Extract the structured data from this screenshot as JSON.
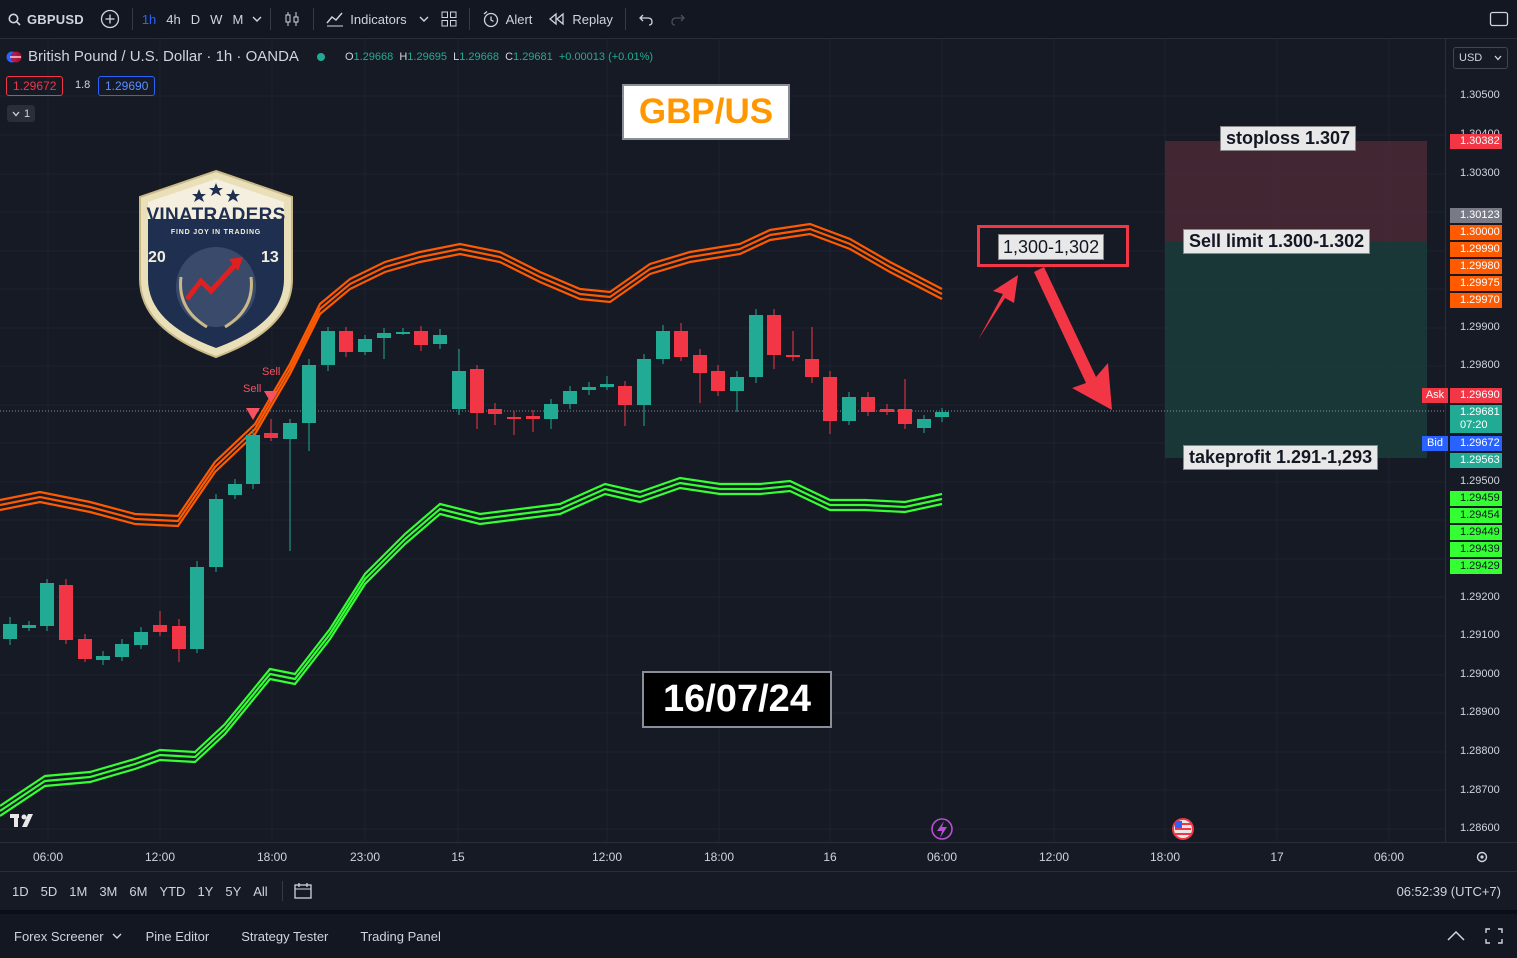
{
  "toolbar": {
    "symbol": "GBPUSD",
    "timeframes": [
      "1h",
      "4h",
      "D",
      "W",
      "M"
    ],
    "active_timeframe": "1h",
    "indicators_label": "Indicators",
    "alert_label": "Alert",
    "replay_label": "Replay"
  },
  "legend": {
    "title": "British Pound / U.S. Dollar · 1h · OANDA",
    "open_label": "O",
    "open": "1.29668",
    "high_label": "H",
    "high": "1.29695",
    "low_label": "L",
    "low": "1.29668",
    "close_label": "C",
    "close": "1.29681",
    "change": "+0.00013 (+0.01%)",
    "sell_price": "1.29672",
    "spread": "1.8",
    "buy_price": "1.29690",
    "collapse_count": "1"
  },
  "annotations": {
    "pair_label": "GBP/US",
    "date_label": "16/07/24",
    "zone_label": "1,300-1,302",
    "stoploss": "stoploss 1.307",
    "sell_limit": "Sell limit 1.300-1.302",
    "takeprofit": "takeprofit 1.291-1,293",
    "sell_signal_1": "Sell",
    "sell_signal_2": "Sell"
  },
  "logo": {
    "name": "VINATRADERS",
    "tagline": "FIND JOY IN TRADING",
    "year_left": "20",
    "year_right": "13"
  },
  "currency": "USD",
  "price_axis": {
    "ticks": [
      "1.30500",
      "1.30400",
      "1.30300",
      "1.29900",
      "1.29800",
      "1.29500",
      "1.29200",
      "1.29100",
      "1.29000",
      "1.28900",
      "1.28800",
      "1.28700",
      "1.28600"
    ],
    "tags": {
      "stoploss": "1.30382",
      "entry_top": "1.30123",
      "upper_1": "1.30000",
      "upper_2": "1.29990",
      "upper_3": "1.29980",
      "upper_4": "1.29975",
      "upper_5": "1.29970",
      "ask_label": "Ask",
      "ask": "1.29690",
      "last": "1.29681",
      "countdown": "07:20",
      "bid_label": "Bid",
      "bid": "1.29672",
      "tp": "1.29563",
      "lower_1": "1.29459",
      "lower_2": "1.29454",
      "lower_3": "1.29449",
      "lower_4": "1.29439",
      "lower_5": "1.29429"
    }
  },
  "time_axis": [
    "06:00",
    "12:00",
    "18:00",
    "23:00",
    "15",
    "12:00",
    "18:00",
    "16",
    "06:00",
    "12:00",
    "18:00",
    "17",
    "06:00"
  ],
  "range_bar": {
    "ranges": [
      "1D",
      "5D",
      "1M",
      "3M",
      "6M",
      "YTD",
      "1Y",
      "5Y",
      "All"
    ],
    "clock": "06:52:39 (UTC+7)"
  },
  "bottom_tabs": [
    "Forex Screener",
    "Pine Editor",
    "Strategy Tester",
    "Trading Panel"
  ],
  "colors": {
    "up": "#22ab94",
    "down": "#f23645",
    "upper_band": "#ff5a00",
    "lower_band": "#33ff33",
    "background": "#161a25"
  }
}
